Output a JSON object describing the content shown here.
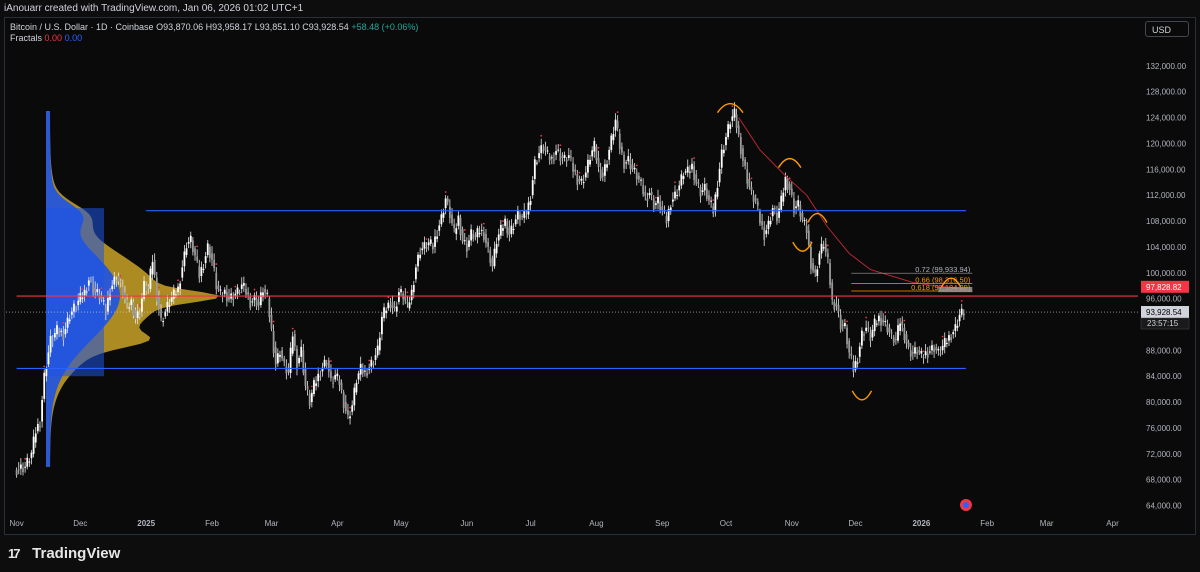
{
  "header": {
    "attribution": "iAnouarr created with TradingView.com, Jan 06, 2026 01:02 UTC+1"
  },
  "legend": {
    "title": "Bitcoin / U.S. Dollar · 1D · Coinbase",
    "open": "O93,870.06",
    "high": "H93,958.17",
    "low": "L93,851.10",
    "close": "C93,928.54",
    "change": "+58.48 (+0.06%)",
    "indicator": "Fractals",
    "fractal_up": "0.00",
    "fractal_down": "0.00"
  },
  "currency": "USD",
  "footer": {
    "brand": "TradingView",
    "logo_mark": "17"
  },
  "colors": {
    "bull": "#ffffff",
    "bear": "#ffffff",
    "blue_line": "#2962ff",
    "red_line": "#f23645",
    "volume_blue": "#1e53e5",
    "volume_gold": "#c9a227",
    "fib": "#ff9800",
    "ma": "#b22833"
  },
  "chart_data": {
    "type": "candlestick",
    "symbol": "BTC/USD",
    "timeframe": "1D",
    "y_axis_labels": [
      "132,000.00",
      "128,000.00",
      "124,000.00",
      "120,000.00",
      "116,000.00",
      "112,000.00",
      "108,000.00",
      "104,000.00",
      "100,000.00",
      "96,000.00",
      "88,000.00",
      "84,000.00",
      "80,000.00",
      "76,000.00",
      "72,000.00",
      "68,000.00",
      "64,000.00"
    ],
    "ylim": [
      63000,
      136000
    ],
    "x_axis_labels": [
      "Nov",
      "Dec",
      "2025",
      "Feb",
      "Mar",
      "Apr",
      "May",
      "Jun",
      "Jul",
      "Aug",
      "Sep",
      "Oct",
      "Nov",
      "Dec",
      "2026",
      "Feb",
      "Mar",
      "Apr"
    ],
    "x_label_days": [
      0,
      30,
      61,
      92,
      120,
      151,
      181,
      212,
      242,
      273,
      304,
      334,
      365,
      395,
      426,
      457,
      485,
      516
    ],
    "xlim_days": [
      -5,
      528
    ],
    "close_path": [
      [
        0,
        69500
      ],
      [
        5,
        70000
      ],
      [
        8,
        72000
      ],
      [
        10,
        75500
      ],
      [
        12,
        77000
      ],
      [
        14,
        84000
      ],
      [
        17,
        89500
      ],
      [
        20,
        91000
      ],
      [
        23,
        90500
      ],
      [
        26,
        93500
      ],
      [
        30,
        95500
      ],
      [
        33,
        97000
      ],
      [
        35,
        99000
      ],
      [
        38,
        97000
      ],
      [
        40,
        96500
      ],
      [
        43,
        94000
      ],
      [
        45,
        97500
      ],
      [
        48,
        99500
      ],
      [
        51,
        97000
      ],
      [
        53,
        94500
      ],
      [
        55,
        95500
      ],
      [
        57,
        93000
      ],
      [
        59,
        94000
      ],
      [
        61,
        98000
      ],
      [
        63,
        97500
      ],
      [
        65,
        102000
      ],
      [
        67,
        96500
      ],
      [
        69,
        92500
      ],
      [
        71,
        94000
      ],
      [
        73,
        95500
      ],
      [
        75,
        96500
      ],
      [
        77,
        97500
      ],
      [
        79,
        101000
      ],
      [
        81,
        104500
      ],
      [
        83,
        105000
      ],
      [
        85,
        102500
      ],
      [
        87,
        99500
      ],
      [
        89,
        101500
      ],
      [
        91,
        104000
      ],
      [
        93,
        102000
      ],
      [
        95,
        98000
      ],
      [
        97,
        96500
      ],
      [
        99,
        97000
      ],
      [
        101,
        96000
      ],
      [
        103,
        96500
      ],
      [
        105,
        97000
      ],
      [
        107,
        98000
      ],
      [
        109,
        97000
      ],
      [
        111,
        95500
      ],
      [
        113,
        96000
      ],
      [
        115,
        95000
      ],
      [
        117,
        97500
      ],
      [
        119,
        96000
      ],
      [
        121,
        91000
      ],
      [
        123,
        86000
      ],
      [
        125,
        88000
      ],
      [
        127,
        85500
      ],
      [
        129,
        84500
      ],
      [
        131,
        90500
      ],
      [
        133,
        86000
      ],
      [
        135,
        88000
      ],
      [
        137,
        82500
      ],
      [
        139,
        80000
      ],
      [
        141,
        82500
      ],
      [
        143,
        84000
      ],
      [
        145,
        85500
      ],
      [
        147,
        86500
      ],
      [
        149,
        83000
      ],
      [
        151,
        84000
      ],
      [
        153,
        83000
      ],
      [
        155,
        80000
      ],
      [
        157,
        77500
      ],
      [
        159,
        79500
      ],
      [
        161,
        83500
      ],
      [
        163,
        85000
      ],
      [
        165,
        84500
      ],
      [
        167,
        85500
      ],
      [
        169,
        86500
      ],
      [
        171,
        88000
      ],
      [
        173,
        93000
      ],
      [
        175,
        94500
      ],
      [
        177,
        95500
      ],
      [
        179,
        94000
      ],
      [
        181,
        97000
      ],
      [
        183,
        96500
      ],
      [
        185,
        94500
      ],
      [
        187,
        97000
      ],
      [
        189,
        101000
      ],
      [
        191,
        103500
      ],
      [
        193,
        104000
      ],
      [
        195,
        104500
      ],
      [
        197,
        104000
      ],
      [
        199,
        106500
      ],
      [
        201,
        108500
      ],
      [
        203,
        111500
      ],
      [
        205,
        109000
      ],
      [
        207,
        106000
      ],
      [
        209,
        108500
      ],
      [
        211,
        105000
      ],
      [
        213,
        104000
      ],
      [
        215,
        106000
      ],
      [
        217,
        105500
      ],
      [
        219,
        106500
      ],
      [
        221,
        106000
      ],
      [
        223,
        103500
      ],
      [
        225,
        101000
      ],
      [
        227,
        105000
      ],
      [
        229,
        106500
      ],
      [
        231,
        108000
      ],
      [
        233,
        106000
      ],
      [
        235,
        107500
      ],
      [
        237,
        109000
      ],
      [
        239,
        108500
      ],
      [
        241,
        109000
      ],
      [
        243,
        112000
      ],
      [
        245,
        117000
      ],
      [
        247,
        118500
      ],
      [
        249,
        119500
      ],
      [
        251,
        118000
      ],
      [
        253,
        117500
      ],
      [
        255,
        119000
      ],
      [
        257,
        118000
      ],
      [
        259,
        117500
      ],
      [
        261,
        118000
      ],
      [
        263,
        116000
      ],
      [
        265,
        114500
      ],
      [
        267,
        114000
      ],
      [
        269,
        115500
      ],
      [
        271,
        118000
      ],
      [
        273,
        119500
      ],
      [
        275,
        116000
      ],
      [
        277,
        115000
      ],
      [
        279,
        117500
      ],
      [
        281,
        120500
      ],
      [
        283,
        123500
      ],
      [
        285,
        119500
      ],
      [
        287,
        117000
      ],
      [
        289,
        117500
      ],
      [
        291,
        116000
      ],
      [
        293,
        115000
      ],
      [
        295,
        113500
      ],
      [
        297,
        111500
      ],
      [
        299,
        112500
      ],
      [
        301,
        110500
      ],
      [
        303,
        111000
      ],
      [
        305,
        109500
      ],
      [
        307,
        108000
      ],
      [
        309,
        111000
      ],
      [
        311,
        112000
      ],
      [
        313,
        113500
      ],
      [
        315,
        115500
      ],
      [
        317,
        115500
      ],
      [
        319,
        116500
      ],
      [
        321,
        114000
      ],
      [
        323,
        112500
      ],
      [
        325,
        113000
      ],
      [
        327,
        111000
      ],
      [
        329,
        109500
      ],
      [
        331,
        114000
      ],
      [
        333,
        118500
      ],
      [
        335,
        121000
      ],
      [
        337,
        123500
      ],
      [
        339,
        124500
      ],
      [
        341,
        121000
      ],
      [
        343,
        117500
      ],
      [
        345,
        114500
      ],
      [
        347,
        112000
      ],
      [
        349,
        111000
      ],
      [
        351,
        108000
      ],
      [
        353,
        106000
      ],
      [
        355,
        107500
      ],
      [
        357,
        110000
      ],
      [
        359,
        108500
      ],
      [
        361,
        111000
      ],
      [
        363,
        114500
      ],
      [
        365,
        113000
      ],
      [
        367,
        110000
      ],
      [
        369,
        110500
      ],
      [
        371,
        108000
      ],
      [
        373,
        106500
      ],
      [
        375,
        101500
      ],
      [
        377,
        99500
      ],
      [
        379,
        103000
      ],
      [
        381,
        104500
      ],
      [
        383,
        101500
      ],
      [
        385,
        95500
      ],
      [
        387,
        95000
      ],
      [
        389,
        92000
      ],
      [
        391,
        91500
      ],
      [
        393,
        87500
      ],
      [
        395,
        85000
      ],
      [
        397,
        87000
      ],
      [
        399,
        90500
      ],
      [
        401,
        91500
      ],
      [
        403,
        90000
      ],
      [
        405,
        92000
      ],
      [
        407,
        93000
      ],
      [
        409,
        92500
      ],
      [
        411,
        91500
      ],
      [
        413,
        90000
      ],
      [
        415,
        89500
      ],
      [
        417,
        92500
      ],
      [
        419,
        90500
      ],
      [
        421,
        88000
      ],
      [
        423,
        87500
      ],
      [
        425,
        88000
      ],
      [
        427,
        87000
      ],
      [
        429,
        87500
      ],
      [
        431,
        88000
      ],
      [
        433,
        88500
      ],
      [
        435,
        87500
      ],
      [
        437,
        88500
      ],
      [
        439,
        89500
      ],
      [
        441,
        90500
      ],
      [
        443,
        91500
      ],
      [
        445,
        93500
      ],
      [
        447,
        93928
      ]
    ],
    "horizontal_levels": [
      {
        "price": 109600,
        "from_day": 61,
        "to_day": 447,
        "color": "blue"
      },
      {
        "price": 96400,
        "from_day": 0,
        "to_day": 528,
        "color": "red"
      },
      {
        "price": 85200,
        "from_day": 0,
        "to_day": 447,
        "color": "blue"
      }
    ],
    "fib_levels": [
      {
        "label": "0.72 (99,933.94)",
        "price": 99934
      },
      {
        "label": "0.66 (98,316.50)",
        "price": 98316
      },
      {
        "label": "0.618 (97,184.29)",
        "price": 97184
      }
    ],
    "price_tags": [
      {
        "label": "97,828.82",
        "price": 97829,
        "bg": "#f23645"
      },
      {
        "label": "93,928.54",
        "price": 93929,
        "bg": "#d1d4dc"
      }
    ],
    "countdown": "23:57:15"
  }
}
